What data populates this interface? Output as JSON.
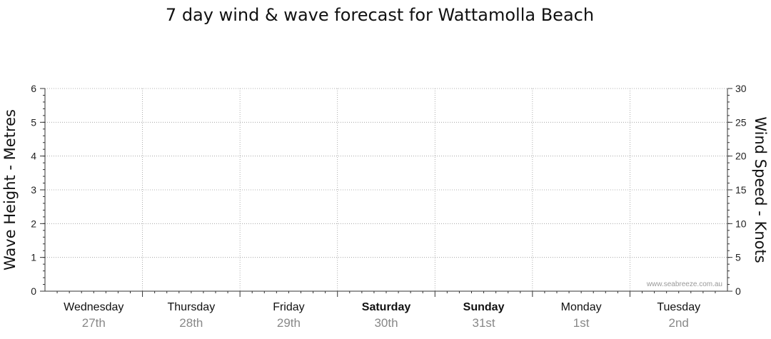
{
  "chart_data": {
    "type": "line",
    "title": "7 day wind & wave forecast for Wattamolla Beach",
    "ylabel_left": "Wave Height - Metres",
    "ylabel_right": "Wind Speed - Knots",
    "ylim_left": [
      0,
      6
    ],
    "ylim_right": [
      0,
      30
    ],
    "yticks_left": [
      "0",
      "1",
      "2",
      "3",
      "4",
      "5",
      "6"
    ],
    "yticks_right": [
      "0",
      "5",
      "10",
      "15",
      "20",
      "25",
      "30"
    ],
    "grid": true,
    "days": [
      {
        "day": "Wednesday",
        "date": "27th",
        "bold": false
      },
      {
        "day": "Thursday",
        "date": "28th",
        "bold": false
      },
      {
        "day": "Friday",
        "date": "29th",
        "bold": false
      },
      {
        "day": "Saturday",
        "date": "30th",
        "bold": true
      },
      {
        "day": "Sunday",
        "date": "31st",
        "bold": true
      },
      {
        "day": "Monday",
        "date": "1st",
        "bold": false
      },
      {
        "day": "Tuesday",
        "date": "2nd",
        "bold": false
      }
    ],
    "series": [],
    "watermark": "www.seabreeze.com.au"
  }
}
